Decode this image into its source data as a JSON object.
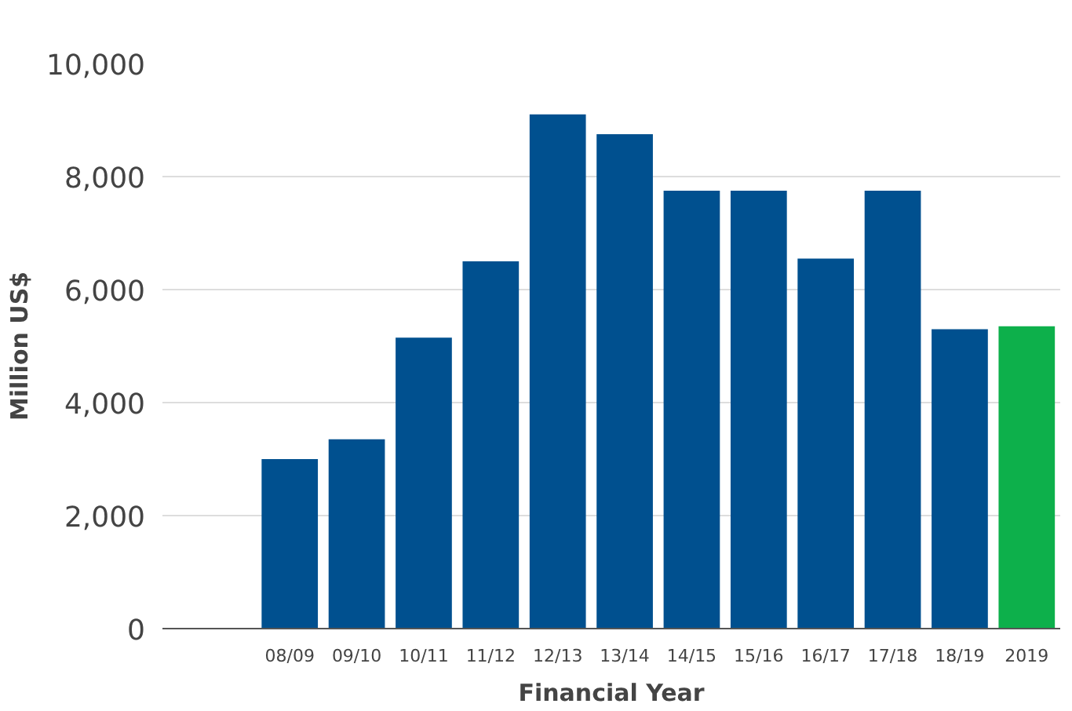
{
  "chart_data": {
    "type": "bar",
    "xlabel": "Financial Year",
    "ylabel": "Million US$",
    "categories": [
      "08/09",
      "09/10",
      "10/11",
      "11/12",
      "12/13",
      "13/14",
      "14/15",
      "15/16",
      "16/17",
      "17/18",
      "18/19",
      "2019"
    ],
    "values": [
      3000,
      3350,
      5150,
      6500,
      9100,
      8750,
      7750,
      7750,
      6550,
      7750,
      5300,
      5350
    ],
    "colors": [
      "#00508f",
      "#00508f",
      "#00508f",
      "#00508f",
      "#00508f",
      "#00508f",
      "#00508f",
      "#00508f",
      "#00508f",
      "#00508f",
      "#00508f",
      "#0db04b"
    ],
    "ylim": [
      0,
      10000
    ],
    "yticks": [
      {
        "value": 0,
        "label": "0"
      },
      {
        "value": 2000,
        "label": "2,000"
      },
      {
        "value": 4000,
        "label": "4,000"
      },
      {
        "value": 6000,
        "label": "6,000"
      },
      {
        "value": 8000,
        "label": "8,000"
      },
      {
        "value": 10000,
        "label": "10,000"
      }
    ],
    "grid": "y"
  }
}
